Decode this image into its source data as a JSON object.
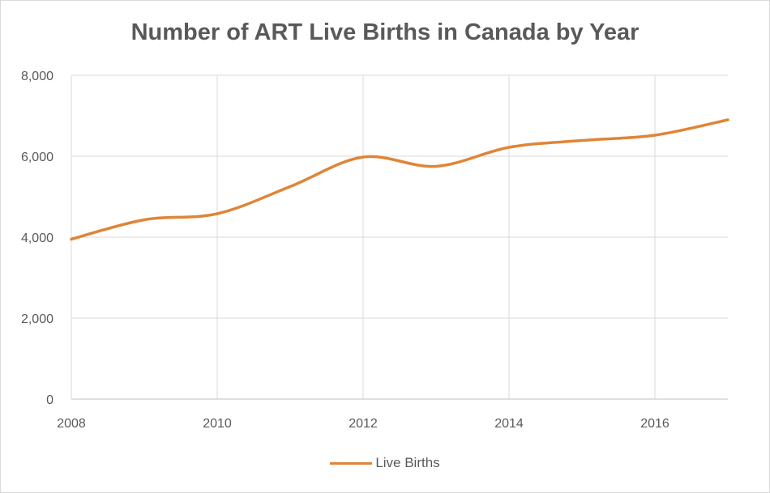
{
  "chart_data": {
    "type": "line",
    "title": "Number of ART Live Births in Canada by Year",
    "xlabel": "",
    "ylabel": "",
    "x": [
      2008,
      2009,
      2010,
      2011,
      2012,
      2013,
      2014,
      2015,
      2016,
      2017
    ],
    "series": [
      {
        "name": "Live Births",
        "color": "#df8537",
        "values": [
          3950,
          4430,
          4580,
          5250,
          5980,
          5750,
          6220,
          6390,
          6520,
          6900
        ]
      }
    ],
    "xlim": [
      2008,
      2017
    ],
    "ylim": [
      0,
      8000
    ],
    "x_ticks": [
      2008,
      2010,
      2012,
      2014,
      2016
    ],
    "x_tick_labels": [
      "2008",
      "2010",
      "2012",
      "2014",
      "2016"
    ],
    "y_ticks": [
      0,
      2000,
      4000,
      6000,
      8000
    ],
    "y_tick_labels": [
      "0",
      "2,000",
      "4,000",
      "6,000",
      "8,000"
    ],
    "grid": true,
    "smooth": true,
    "legend_position": "bottom",
    "gridline_color": "#d9d9d9"
  }
}
